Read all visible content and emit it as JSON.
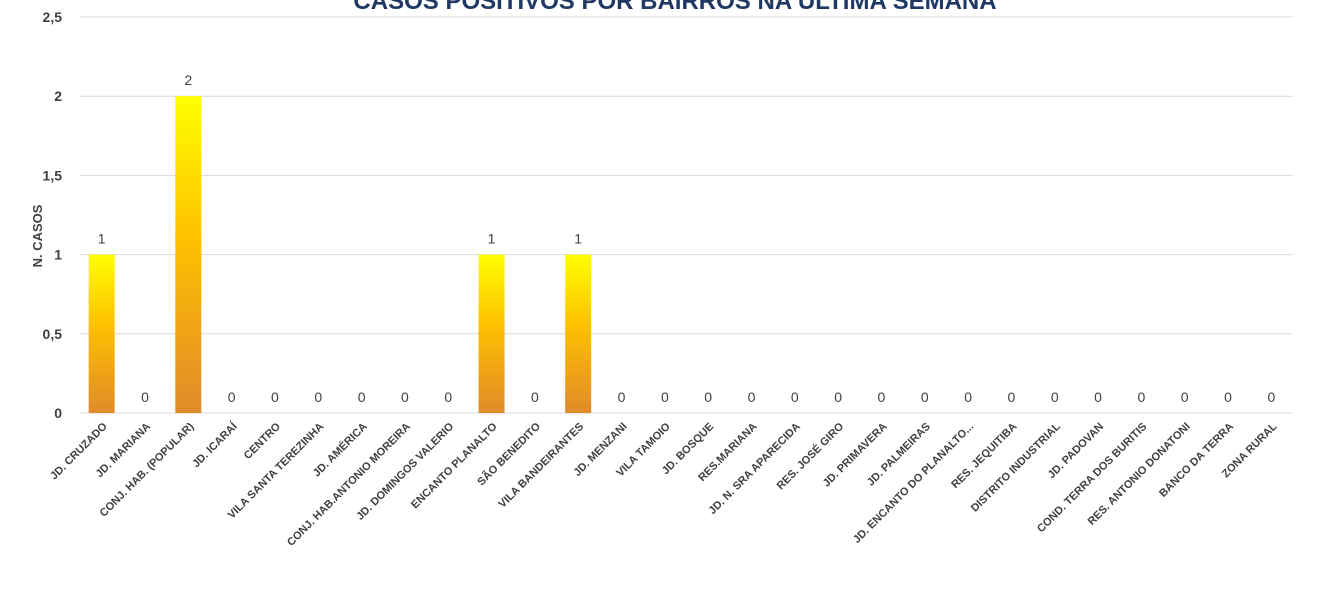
{
  "chart_data": {
    "type": "bar",
    "title": "CASOS POSITIVOS POR BAIRROS NA ÚLTIMA SEMANA",
    "ylabel": "N. CASOS",
    "xlabel": "",
    "ylim": [
      0,
      2.5
    ],
    "yticks": [
      "0",
      "0,5",
      "1",
      "1,5",
      "2",
      "2,5"
    ],
    "ytick_values": [
      0,
      0.5,
      1,
      1.5,
      2,
      2.5
    ],
    "grid": true,
    "legend": "none",
    "colors": {
      "bar_top": "#ffff00",
      "bar_mid": "#ffc000",
      "bar_bottom": "#e08a2a",
      "title": "#1f3864",
      "text": "#404040",
      "grid": "#d9d9d9"
    },
    "categories": [
      "JD. CRUZADO",
      "JD. MARIANA",
      "CONJ. HAB. (POPULAR)",
      "JD. ICARAÍ",
      "CENTRO",
      "VILA SANTA TEREZINHA",
      "JD. AMÉRICA",
      "CONJ. HAB.ANTONIO MOREIRA",
      "JD. DOMINGOS VALERIO",
      "ENCANTO PLANALTO",
      "SÃO BENEDITO",
      "VILA BANDEIRANTES",
      "JD. MENZANI",
      "VILA TAMOIO",
      "JD. BOSQUE",
      "RES.MARIANA",
      "JD. N. SRA APARECIDA",
      "RES. JOSÉ GIRO",
      "JD. PRIMAVERA",
      "JD. PALMEIRAS",
      "JD. ENCANTO DO PLANALTO...",
      "RES. JEQUITIBA",
      "DISTRITO INDUSTRIAL",
      "JD. PADOVAN",
      "COND. TERRA DOS BURITIS",
      "RES. ANTONIO DONATONI",
      "BANCO DA TERRA",
      "ZONA RURAL"
    ],
    "values": [
      1,
      0,
      2,
      0,
      0,
      0,
      0,
      0,
      0,
      1,
      0,
      1,
      0,
      0,
      0,
      0,
      0,
      0,
      0,
      0,
      0,
      0,
      0,
      0,
      0,
      0,
      0,
      0
    ],
    "data_labels": [
      "1",
      "0",
      "2",
      "0",
      "0",
      "0",
      "0",
      "0",
      "0",
      "1",
      "0",
      "1",
      "0",
      "0",
      "0",
      "0",
      "0",
      "0",
      "0",
      "0",
      "0",
      "0",
      "0",
      "0",
      "0",
      "0",
      "0",
      "0"
    ]
  }
}
